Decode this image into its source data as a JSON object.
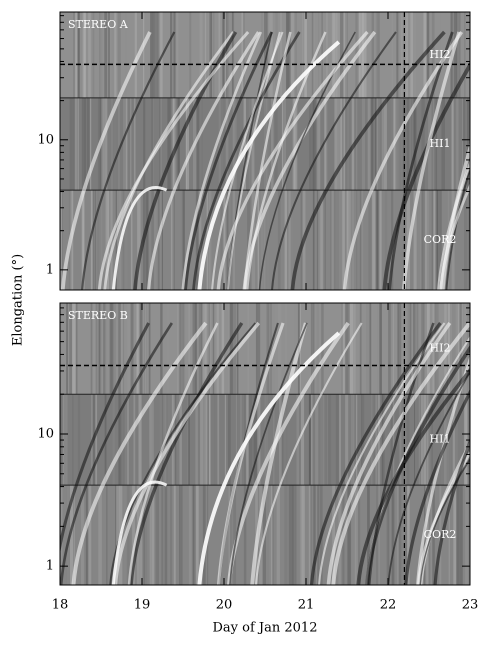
{
  "ylabel": "Elongation (°)",
  "chart_data": [
    {
      "type": "jmap",
      "title": "STEREO A",
      "xlim": [
        18,
        23
      ],
      "xticks": [
        18,
        19,
        20,
        21,
        22,
        23
      ],
      "ylog": true,
      "ylim": [
        0.7,
        96
      ],
      "yticks": [
        1,
        10
      ],
      "yminorticks": [
        2,
        3,
        4,
        5,
        6,
        7,
        8,
        9,
        20,
        30,
        40,
        50,
        60,
        70,
        80,
        90
      ],
      "regions": [
        {
          "name": "COR2",
          "from": 0.7,
          "to": 4.1
        },
        {
          "name": "HI1",
          "from": 4.1,
          "to": 21
        },
        {
          "name": "HI2",
          "from": 21,
          "to": 96
        }
      ],
      "hline": 38,
      "vline": 22.2
    },
    {
      "type": "jmap",
      "title": "STEREO B",
      "xlim": [
        18,
        23
      ],
      "xticks": [
        18,
        19,
        20,
        21,
        22,
        23
      ],
      "ylog": true,
      "ylim": [
        0.72,
        98
      ],
      "yticks": [
        1,
        10
      ],
      "yminorticks": [
        2,
        3,
        4,
        5,
        6,
        7,
        8,
        9,
        20,
        30,
        40,
        50,
        60,
        70,
        80,
        90
      ],
      "regions": [
        {
          "name": "COR2",
          "from": 0.72,
          "to": 4.1
        },
        {
          "name": "HI1",
          "from": 4.1,
          "to": 20
        },
        {
          "name": "HI2",
          "from": 20,
          "to": 98
        }
      ],
      "hline": 33,
      "vline": 22.2,
      "xlabel": "Day of Jan 2012"
    }
  ]
}
